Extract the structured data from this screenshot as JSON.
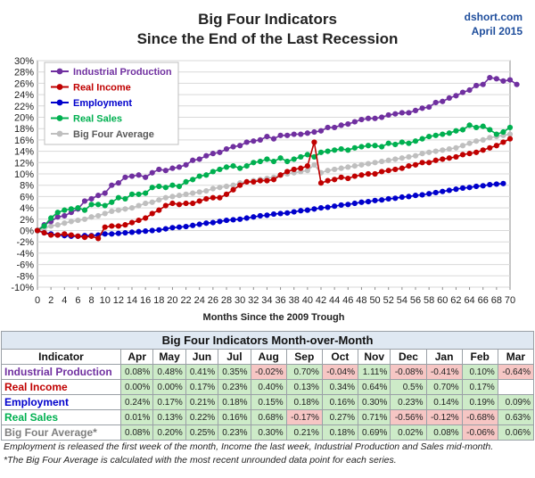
{
  "header": {
    "title_line1": "Big Four Indicators",
    "title_line2": "Since the End of the Last Recession",
    "source": "dshort.com",
    "date": "April 2015"
  },
  "chart_data": {
    "type": "line",
    "title": "Big Four Indicators Since the End of the Last Recession",
    "xlabel": "Months Since the 2009 Trough",
    "ylabel": "",
    "xlim": [
      0,
      70
    ],
    "ylim": [
      -10,
      30
    ],
    "y_ticks": [
      "-10%",
      "-8%",
      "-6%",
      "-4%",
      "-2%",
      "0%",
      "2%",
      "4%",
      "6%",
      "8%",
      "10%",
      "12%",
      "14%",
      "16%",
      "18%",
      "20%",
      "22%",
      "24%",
      "26%",
      "28%",
      "30%"
    ],
    "x_ticks": [
      "0",
      "2",
      "4",
      "6",
      "8",
      "10",
      "12",
      "14",
      "16",
      "18",
      "20",
      "22",
      "24",
      "26",
      "28",
      "30",
      "32",
      "34",
      "36",
      "38",
      "40",
      "42",
      "44",
      "46",
      "48",
      "50",
      "52",
      "54",
      "56",
      "58",
      "60",
      "62",
      "64",
      "66",
      "68",
      "70"
    ],
    "grid": true,
    "legend_position": "top-left",
    "series": [
      {
        "name": "Industrial Production",
        "color": "#7030a0",
        "values": [
          0.0,
          1.0,
          1.6,
          2.4,
          2.6,
          3.2,
          3.8,
          5.2,
          5.6,
          6.2,
          6.6,
          8.0,
          8.4,
          9.4,
          9.6,
          9.8,
          9.4,
          10.2,
          10.8,
          10.6,
          11.0,
          11.2,
          11.6,
          12.4,
          12.6,
          13.2,
          13.6,
          13.8,
          14.4,
          14.8,
          15.0,
          15.6,
          15.8,
          16.0,
          16.6,
          16.2,
          16.8,
          16.8,
          17.0,
          17.0,
          17.2,
          17.4,
          17.6,
          18.2,
          18.2,
          18.6,
          18.8,
          19.2,
          19.6,
          19.8,
          19.8,
          20.0,
          20.4,
          20.6,
          20.8,
          20.8,
          21.2,
          21.6,
          21.8,
          22.6,
          22.8,
          23.4,
          23.8,
          24.4,
          24.8,
          25.6,
          25.8,
          27.0,
          26.8,
          26.4,
          26.6,
          25.8
        ]
      },
      {
        "name": "Real Income",
        "color": "#c00000",
        "values": [
          0.0,
          -0.4,
          -0.8,
          -0.8,
          -0.6,
          -0.8,
          -1.0,
          -1.2,
          -1.0,
          -1.4,
          0.6,
          0.8,
          0.8,
          1.0,
          1.4,
          1.8,
          2.2,
          3.0,
          3.6,
          4.4,
          4.8,
          4.6,
          4.8,
          4.8,
          5.2,
          5.6,
          5.8,
          5.8,
          6.4,
          7.2,
          8.0,
          8.6,
          8.6,
          8.8,
          8.8,
          9.0,
          9.8,
          10.4,
          10.8,
          11.0,
          11.4,
          15.6,
          8.4,
          8.8,
          9.0,
          9.4,
          9.2,
          9.6,
          9.8,
          10.0,
          10.0,
          10.4,
          10.6,
          10.8,
          11.0,
          11.4,
          11.6,
          12.0,
          12.0,
          12.4,
          12.6,
          12.8,
          13.0,
          13.4,
          13.6,
          13.8,
          14.2,
          14.6,
          15.0,
          15.6,
          16.2
        ]
      },
      {
        "name": "Employment",
        "color": "#0000cc",
        "values": [
          0.0,
          -0.4,
          -0.6,
          -0.8,
          -0.9,
          -1.0,
          -1.0,
          -0.9,
          -0.9,
          -0.8,
          -0.6,
          -0.6,
          -0.5,
          -0.4,
          -0.3,
          -0.2,
          -0.1,
          0.0,
          0.1,
          0.3,
          0.5,
          0.6,
          0.7,
          0.9,
          1.1,
          1.3,
          1.4,
          1.6,
          1.8,
          1.9,
          2.0,
          2.2,
          2.4,
          2.6,
          2.7,
          2.9,
          3.0,
          3.1,
          3.3,
          3.5,
          3.6,
          3.8,
          4.0,
          4.1,
          4.3,
          4.5,
          4.6,
          4.8,
          5.0,
          5.1,
          5.3,
          5.4,
          5.6,
          5.7,
          5.9,
          6.0,
          6.2,
          6.3,
          6.5,
          6.7,
          6.9,
          7.1,
          7.3,
          7.5,
          7.6,
          7.8,
          7.9,
          8.1,
          8.2,
          8.3
        ]
      },
      {
        "name": "Real Sales",
        "color": "#00b050",
        "values": [
          0.0,
          0.8,
          2.2,
          3.2,
          3.6,
          3.8,
          4.0,
          3.6,
          4.6,
          4.6,
          4.4,
          5.0,
          5.8,
          5.6,
          6.4,
          6.4,
          6.6,
          7.6,
          7.8,
          7.6,
          8.0,
          7.8,
          8.6,
          9.0,
          9.6,
          9.8,
          10.4,
          10.8,
          11.2,
          11.4,
          11.0,
          11.4,
          12.0,
          12.2,
          12.6,
          12.2,
          12.8,
          12.2,
          12.6,
          13.0,
          13.4,
          13.0,
          13.8,
          14.0,
          14.2,
          14.4,
          14.2,
          14.6,
          14.8,
          15.0,
          15.0,
          14.8,
          15.4,
          15.2,
          15.6,
          15.4,
          15.8,
          16.2,
          16.6,
          16.8,
          17.0,
          17.2,
          17.6,
          17.8,
          18.6,
          18.2,
          18.4,
          17.8,
          17.0,
          17.4,
          18.2
        ]
      },
      {
        "name": "Big Four Average",
        "color": "#bfbfbf",
        "values": [
          0.0,
          0.4,
          0.8,
          1.0,
          1.3,
          1.6,
          1.8,
          2.0,
          2.4,
          2.6,
          3.0,
          3.4,
          3.6,
          3.8,
          4.0,
          4.4,
          4.8,
          5.0,
          5.4,
          5.8,
          6.0,
          6.2,
          6.4,
          6.6,
          6.8,
          7.0,
          7.4,
          7.6,
          7.8,
          8.0,
          8.4,
          8.6,
          8.8,
          9.0,
          9.2,
          9.4,
          9.8,
          10.0,
          10.2,
          10.4,
          10.6,
          11.6,
          10.2,
          10.6,
          10.8,
          11.0,
          11.2,
          11.4,
          11.6,
          11.8,
          12.0,
          12.2,
          12.4,
          12.6,
          12.8,
          13.0,
          13.2,
          13.6,
          13.8,
          14.0,
          14.2,
          14.4,
          14.6,
          15.0,
          15.4,
          15.8,
          16.0,
          16.4,
          16.6,
          16.8,
          17.0
        ]
      }
    ]
  },
  "table": {
    "caption": "Big Four Indicators Month-over-Month",
    "header_label": "Indicator",
    "months": [
      "Apr",
      "May",
      "Jun",
      "Jul",
      "Aug",
      "Sep",
      "Oct",
      "Nov",
      "Dec",
      "Jan",
      "Feb",
      "Mar"
    ],
    "rows": [
      {
        "name": "Industrial Production",
        "color": "#7030a0",
        "values": [
          "0.08%",
          "0.48%",
          "0.41%",
          "0.35%",
          "-0.02%",
          "0.70%",
          "-0.04%",
          "1.11%",
          "-0.08%",
          "-0.41%",
          "0.10%",
          "-0.64%"
        ]
      },
      {
        "name": "Real Income",
        "color": "#c00000",
        "values": [
          "0.00%",
          "0.00%",
          "0.17%",
          "0.23%",
          "0.40%",
          "0.13%",
          "0.34%",
          "0.64%",
          "0.5%",
          "0.70%",
          "0.17%",
          ""
        ]
      },
      {
        "name": "Employment",
        "color": "#0000cc",
        "values": [
          "0.24%",
          "0.17%",
          "0.21%",
          "0.18%",
          "0.15%",
          "0.18%",
          "0.16%",
          "0.30%",
          "0.23%",
          "0.14%",
          "0.19%",
          "0.09%"
        ]
      },
      {
        "name": "Real Sales",
        "color": "#00b050",
        "values": [
          "0.01%",
          "0.13%",
          "0.22%",
          "0.16%",
          "0.68%",
          "-0.17%",
          "0.27%",
          "0.71%",
          "-0.56%",
          "-0.12%",
          "-0.68%",
          "0.63%"
        ]
      },
      {
        "name": "Big Four Average*",
        "color": "#7f7f7f",
        "values": [
          "0.08%",
          "0.20%",
          "0.25%",
          "0.23%",
          "0.30%",
          "0.21%",
          "0.18%",
          "0.69%",
          "0.02%",
          "0.08%",
          "-0.06%",
          "0.06%"
        ]
      }
    ]
  },
  "notes": {
    "line1": "Employment is released the first week of the month, Income the last week, Industrial Production and Sales mid-month.",
    "line2": "*The Big Four Average is calculated with the most recent  unrounded data point for each series."
  }
}
